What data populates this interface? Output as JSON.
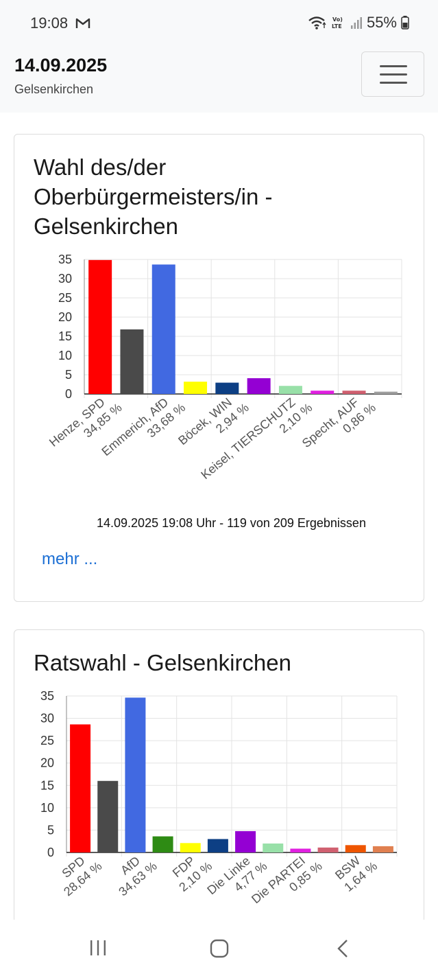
{
  "status": {
    "time": "19:08",
    "battery": "55%",
    "icons": [
      "gmail-icon",
      "wifi-icon",
      "volte-icon",
      "signal-icon",
      "battery-icon"
    ]
  },
  "header": {
    "date": "14.09.2025",
    "city": "Gelsenkirchen",
    "menu_icon": "hamburger-menu-icon"
  },
  "card1": {
    "title": "Wahl des/der Oberbürgermeisters/in - Gelsenkirchen",
    "footnote": "14.09.2025 19:08 Uhr - 119 von 209 Ergebnissen",
    "more_label": "mehr ..."
  },
  "card2": {
    "title": "Ratswahl - Gelsenkirchen"
  },
  "nav_icons": [
    "recent-apps-icon",
    "home-icon",
    "back-icon"
  ],
  "chart_data": [
    {
      "type": "bar",
      "yticks": [
        "35",
        "30",
        "25",
        "20",
        "15",
        "10",
        "5",
        "0"
      ],
      "ylim": [
        0,
        35
      ],
      "values": [
        34.85,
        16.8,
        33.68,
        3.2,
        2.94,
        4.1,
        2.1,
        0.86,
        0.86,
        0.6
      ],
      "colors": [
        "#ff0000",
        "#4a4a4a",
        "#4169e1",
        "#ffff00",
        "#0d3f84",
        "#9400d3",
        "#98e0a8",
        "#e020e0",
        "#d06070",
        "#a0a0a0"
      ],
      "xlabels": [
        {
          "name": "Henze, SPD",
          "pct": "34,85 %",
          "index": 0
        },
        {
          "name": "Emmerich, AfD",
          "pct": "33,68 %",
          "index": 2
        },
        {
          "name": "Böcek, WIN",
          "pct": "2,94 %",
          "index": 4
        },
        {
          "name": "Keisel, TIERSCHUTZ",
          "pct": "2,10 %",
          "index": 6
        },
        {
          "name": "Specht, AUF",
          "pct": "0,86 %",
          "index": 8
        }
      ]
    },
    {
      "type": "bar",
      "yticks": [
        "35",
        "30",
        "25",
        "20",
        "15",
        "10",
        "5",
        "0"
      ],
      "ylim": [
        0,
        35
      ],
      "values": [
        28.64,
        16.0,
        34.63,
        3.6,
        2.1,
        3.0,
        4.77,
        2.0,
        0.85,
        1.1,
        1.64,
        1.4
      ],
      "colors": [
        "#ff0000",
        "#4a4a4a",
        "#4169e1",
        "#2e8b14",
        "#ffff00",
        "#0d3f84",
        "#9400d3",
        "#98e0a8",
        "#e020e0",
        "#d06070",
        "#ee5500",
        "#e08050"
      ],
      "xlabels": [
        {
          "name": "SPD",
          "pct": "28,64 %",
          "index": 0
        },
        {
          "name": "AfD",
          "pct": "34,63 %",
          "index": 2
        },
        {
          "name": "FDP",
          "pct": "2,10 %",
          "index": 4
        },
        {
          "name": "Die Linke",
          "pct": "4,77 %",
          "index": 6
        },
        {
          "name": "Die PARTEI",
          "pct": "0,85 %",
          "index": 8
        },
        {
          "name": "BSW",
          "pct": "1,64 %",
          "index": 10
        }
      ]
    }
  ]
}
